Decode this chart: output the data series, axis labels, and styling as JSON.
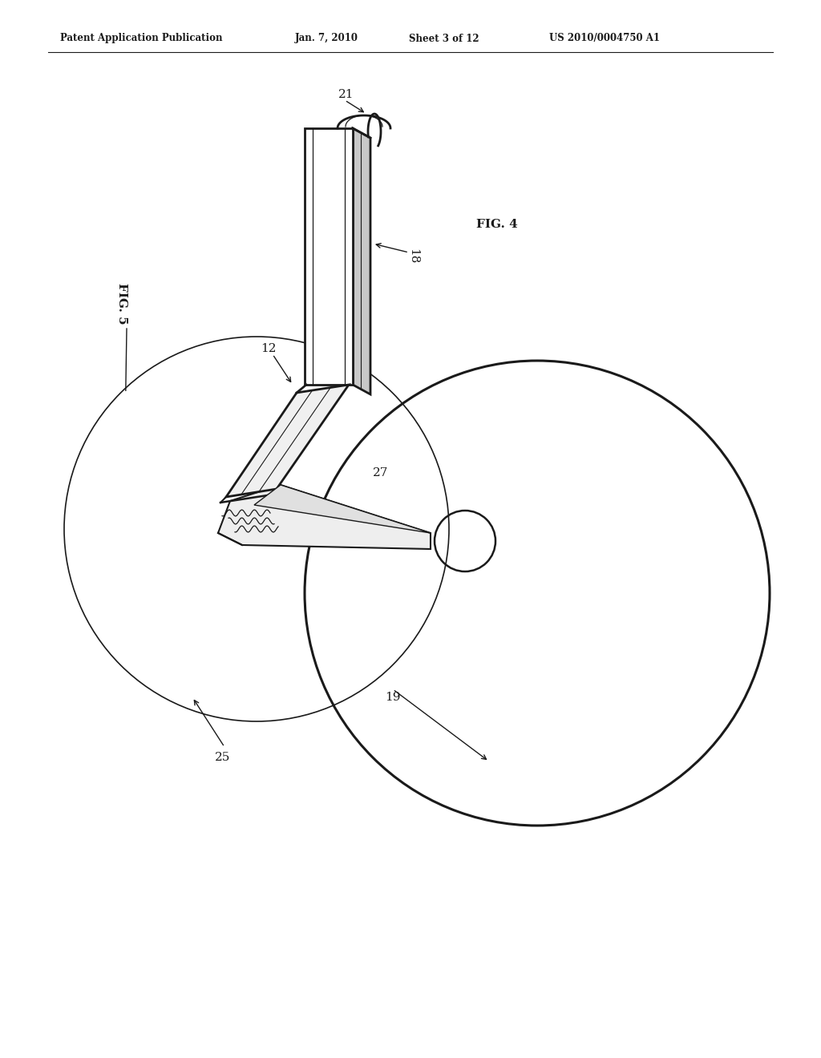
{
  "background_color": "#ffffff",
  "header_text": "Patent Application Publication",
  "header_date": "Jan. 7, 2010",
  "header_sheet": "Sheet 3 of 12",
  "header_patent": "US 2010/0004750 A1",
  "line_color": "#1a1a1a",
  "text_color": "#1a1a1a",
  "tube_color": "#f5f5f5",
  "tube_shade_color": "#d0d0d0",
  "connector_color": "#e8e8e8",
  "disc_color": "#f0f0f0"
}
